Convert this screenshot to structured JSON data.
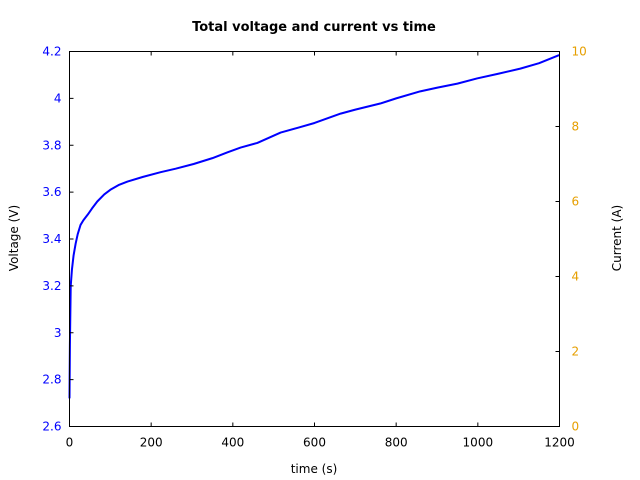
{
  "chart_data": {
    "type": "line",
    "title": "Total voltage and current vs time",
    "xlabel": "time (s)",
    "ylabel": "Voltage (V)",
    "y2label": "Current (A)",
    "xlim": [
      0,
      1200
    ],
    "ylim": [
      2.6,
      4.2
    ],
    "y2lim": [
      0,
      10
    ],
    "xticks": [
      0,
      200,
      400,
      600,
      800,
      1000,
      1200
    ],
    "yticks": [
      2.6,
      2.8,
      3.0,
      3.2,
      3.4,
      3.6,
      3.8,
      4.0,
      4.2
    ],
    "ytick_labels": [
      "2.6",
      "2.8",
      "3",
      "3.2",
      "3.4",
      "3.6",
      "3.8",
      "4",
      "4.2"
    ],
    "y2ticks": [
      0,
      2,
      4,
      6,
      8,
      10
    ],
    "grid": false,
    "legend": null,
    "colors": {
      "voltage": "#0000ff",
      "current_axis": "#e69f00",
      "axes": "#000000"
    },
    "series": [
      {
        "name": "Voltage",
        "axis": "left",
        "color": "#0000ff",
        "x": [
          0,
          1,
          3,
          6,
          10,
          15,
          20,
          27,
          34,
          45,
          55,
          68,
          85,
          100,
          120,
          142,
          180,
          223,
          260,
          304,
          350,
          387,
          419,
          460,
          517,
          560,
          600,
          664,
          700,
          761,
          800,
          859,
          901,
          950,
          998,
          1050,
          1104,
          1150,
          1197,
          1200
        ],
        "y": [
          2.72,
          2.95,
          3.2,
          3.27,
          3.33,
          3.38,
          3.42,
          3.46,
          3.48,
          3.505,
          3.53,
          3.56,
          3.59,
          3.61,
          3.63,
          3.645,
          3.665,
          3.685,
          3.7,
          3.72,
          3.745,
          3.77,
          3.79,
          3.81,
          3.854,
          3.875,
          3.895,
          3.935,
          3.952,
          3.978,
          4.0,
          4.03,
          4.046,
          4.063,
          4.085,
          4.105,
          4.127,
          4.15,
          4.183,
          4.185
        ]
      }
    ]
  }
}
